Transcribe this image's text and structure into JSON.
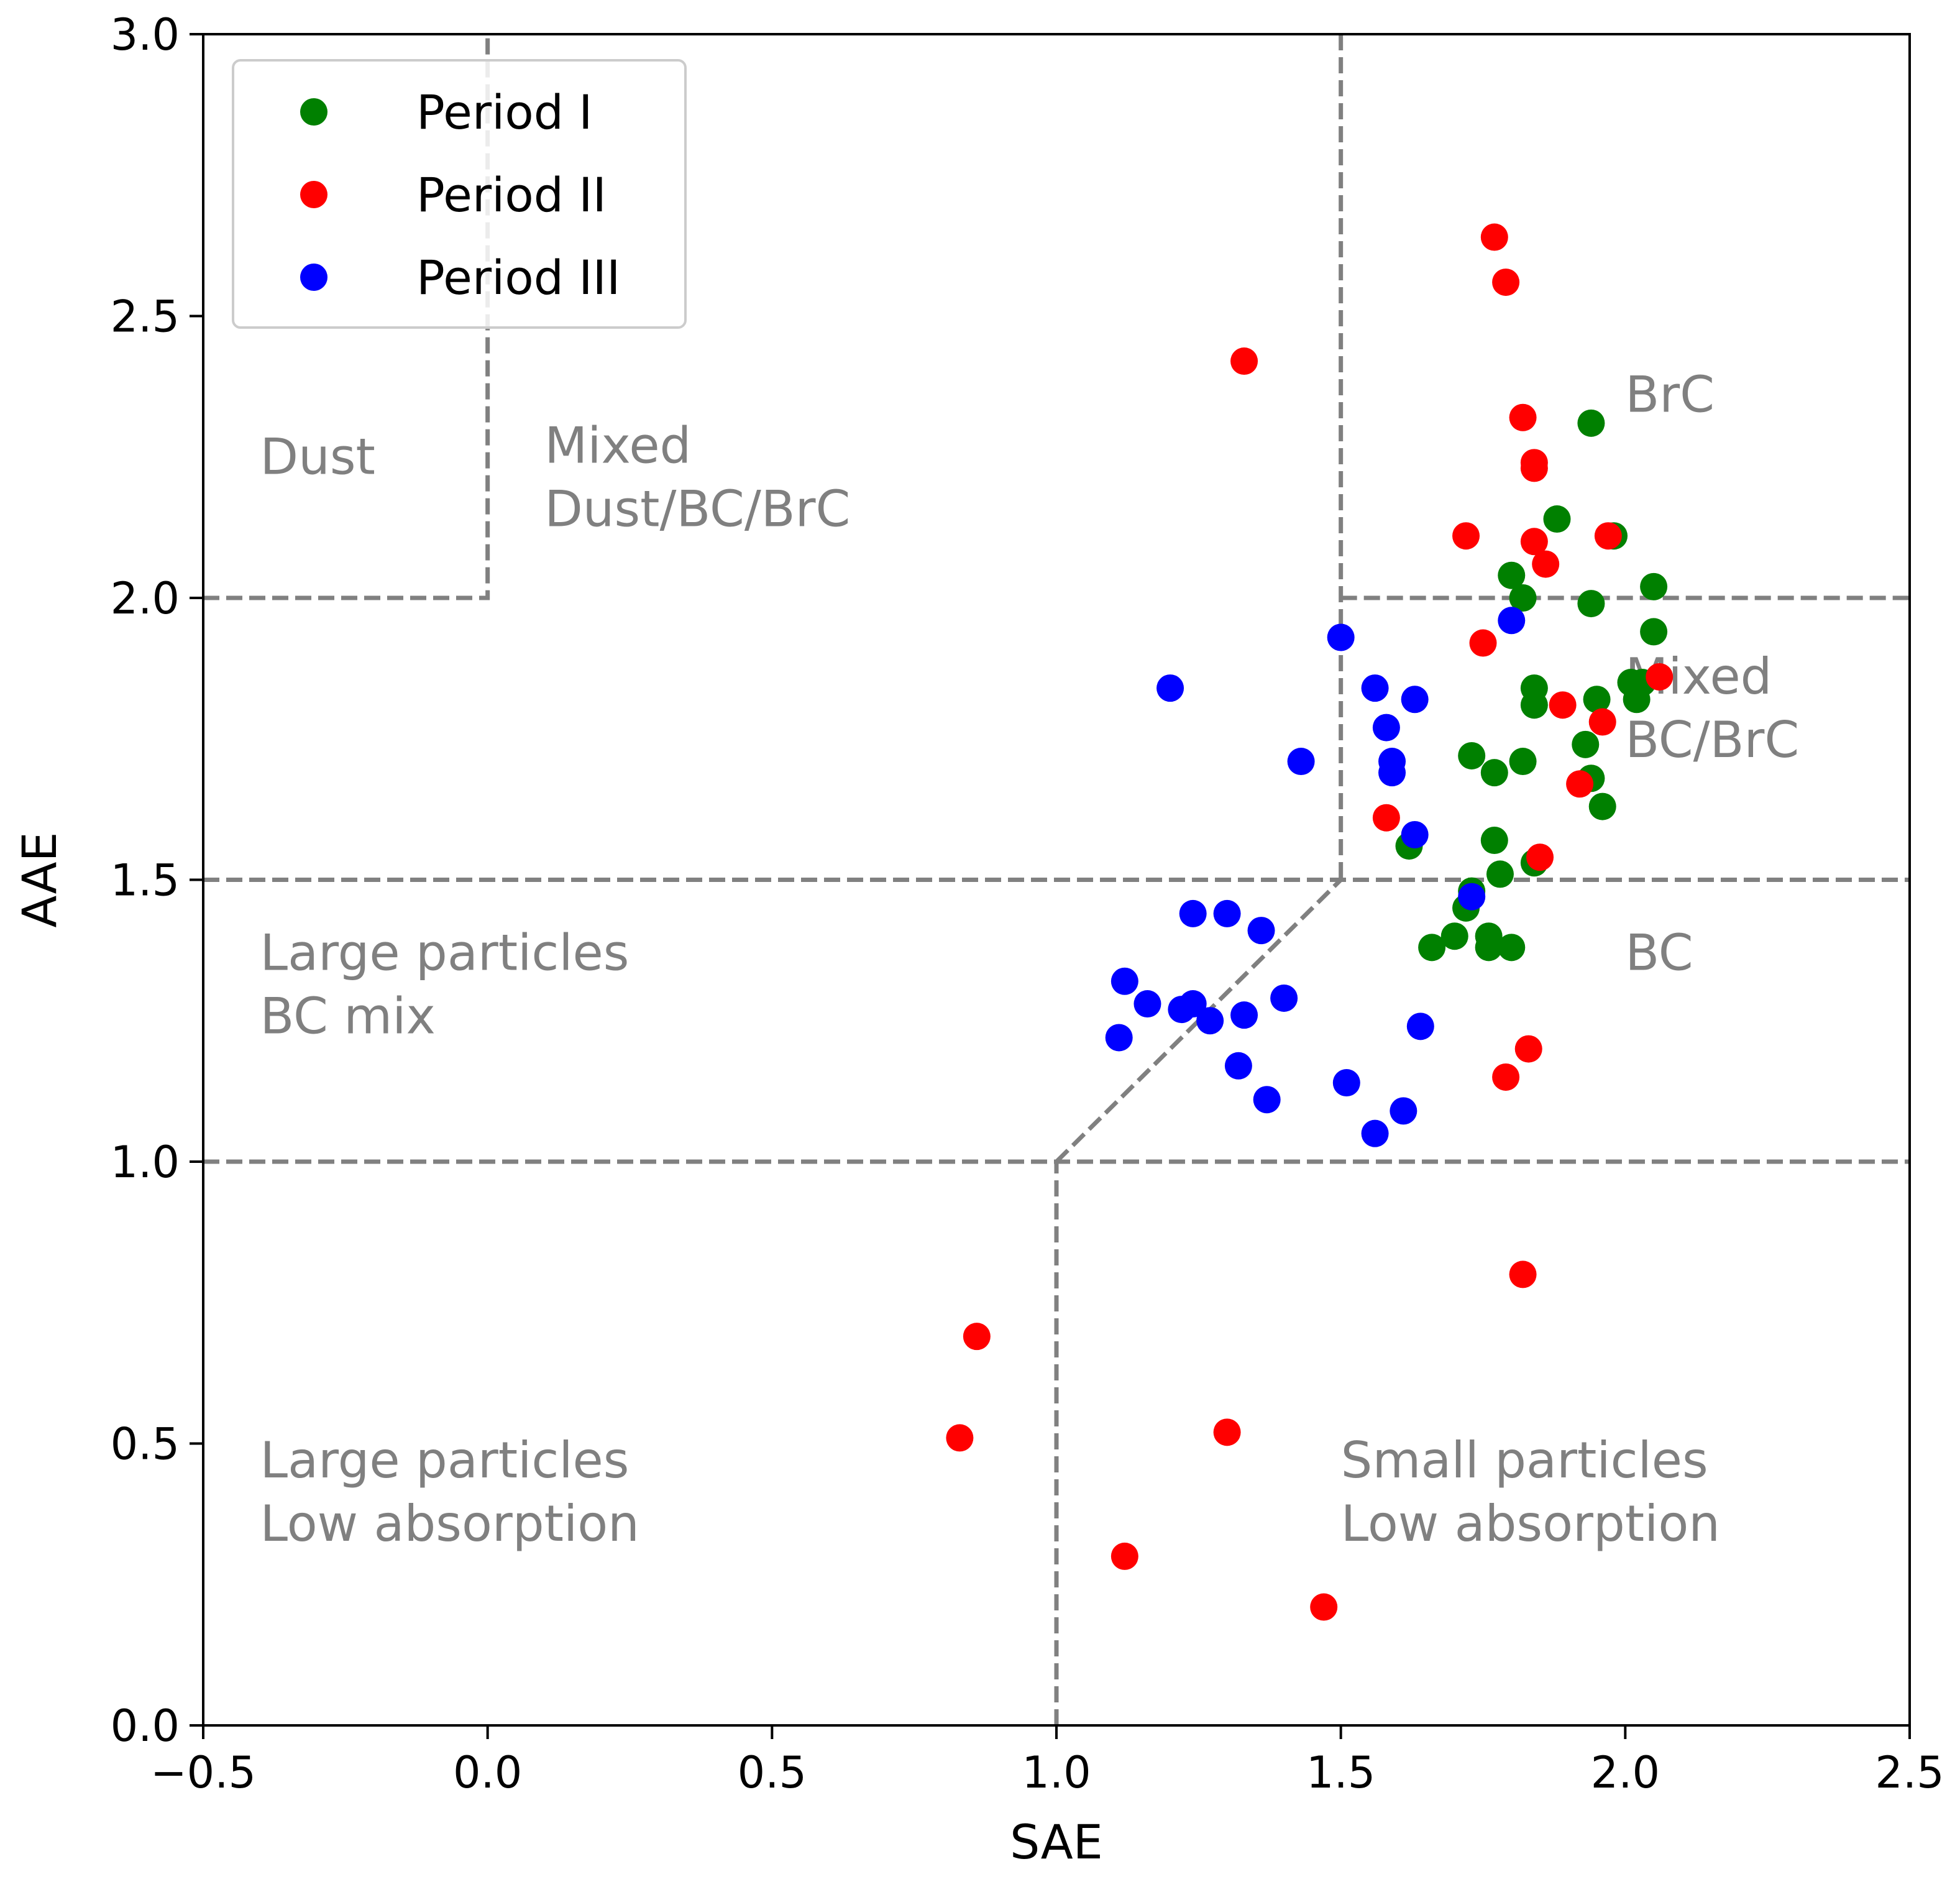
{
  "chart_data": {
    "type": "scatter",
    "xlabel": "SAE",
    "ylabel": "AAE",
    "xlim": [
      -0.5,
      2.5
    ],
    "ylim": [
      0.0,
      3.0
    ],
    "xticks": [
      -0.5,
      0.0,
      0.5,
      1.0,
      1.5,
      2.0,
      2.5
    ],
    "yticks": [
      0.0,
      0.5,
      1.0,
      1.5,
      2.0,
      2.5,
      3.0
    ],
    "xtick_labels": [
      "−0.5",
      "0.0",
      "0.5",
      "1.0",
      "1.5",
      "2.0",
      "2.5"
    ],
    "ytick_labels": [
      "0.0",
      "0.5",
      "1.0",
      "1.5",
      "2.0",
      "2.5",
      "3.0"
    ],
    "grid": false,
    "legend_position": "top-left",
    "series": [
      {
        "name": "Period I",
        "color": "#008000",
        "points": [
          [
            1.94,
            2.31
          ],
          [
            1.88,
            2.14
          ],
          [
            1.98,
            2.11
          ],
          [
            1.8,
            2.04
          ],
          [
            2.05,
            2.02
          ],
          [
            1.82,
            2.0
          ],
          [
            1.94,
            1.99
          ],
          [
            2.05,
            1.94
          ],
          [
            1.84,
            1.84
          ],
          [
            2.01,
            1.85
          ],
          [
            2.03,
            1.85
          ],
          [
            1.84,
            1.81
          ],
          [
            1.95,
            1.82
          ],
          [
            2.02,
            1.82
          ],
          [
            1.93,
            1.74
          ],
          [
            1.73,
            1.72
          ],
          [
            1.82,
            1.71
          ],
          [
            1.77,
            1.69
          ],
          [
            1.94,
            1.68
          ],
          [
            1.96,
            1.63
          ],
          [
            1.62,
            1.56
          ],
          [
            1.77,
            1.57
          ],
          [
            1.78,
            1.51
          ],
          [
            1.84,
            1.53
          ],
          [
            1.73,
            1.48
          ],
          [
            1.72,
            1.45
          ],
          [
            1.76,
            1.4
          ],
          [
            1.7,
            1.4
          ],
          [
            1.66,
            1.38
          ],
          [
            1.76,
            1.38
          ],
          [
            1.8,
            1.38
          ]
        ]
      },
      {
        "name": "Period II",
        "color": "#ff0000",
        "points": [
          [
            1.77,
            2.64
          ],
          [
            1.79,
            2.56
          ],
          [
            1.33,
            2.42
          ],
          [
            1.82,
            2.32
          ],
          [
            1.84,
            2.24
          ],
          [
            1.84,
            2.23
          ],
          [
            1.72,
            2.11
          ],
          [
            1.84,
            2.1
          ],
          [
            1.97,
            2.11
          ],
          [
            1.86,
            2.06
          ],
          [
            1.75,
            1.92
          ],
          [
            2.06,
            1.86
          ],
          [
            1.89,
            1.81
          ],
          [
            1.96,
            1.78
          ],
          [
            1.92,
            1.67
          ],
          [
            1.58,
            1.61
          ],
          [
            1.85,
            1.54
          ],
          [
            1.83,
            1.2
          ],
          [
            1.79,
            1.15
          ],
          [
            1.82,
            0.8
          ],
          [
            0.86,
            0.69
          ],
          [
            0.83,
            0.51
          ],
          [
            1.3,
            0.52
          ],
          [
            1.12,
            0.3
          ],
          [
            1.47,
            0.21
          ]
        ]
      },
      {
        "name": "Period III",
        "color": "#0000ff",
        "points": [
          [
            1.8,
            1.96
          ],
          [
            1.5,
            1.93
          ],
          [
            1.2,
            1.84
          ],
          [
            1.56,
            1.84
          ],
          [
            1.63,
            1.82
          ],
          [
            1.58,
            1.77
          ],
          [
            1.59,
            1.71
          ],
          [
            1.43,
            1.71
          ],
          [
            1.59,
            1.69
          ],
          [
            1.63,
            1.58
          ],
          [
            1.73,
            1.47
          ],
          [
            1.24,
            1.44
          ],
          [
            1.3,
            1.44
          ],
          [
            1.36,
            1.41
          ],
          [
            1.12,
            1.32
          ],
          [
            1.16,
            1.28
          ],
          [
            1.22,
            1.27
          ],
          [
            1.24,
            1.28
          ],
          [
            1.4,
            1.29
          ],
          [
            1.33,
            1.26
          ],
          [
            1.27,
            1.25
          ],
          [
            1.64,
            1.24
          ],
          [
            1.11,
            1.22
          ],
          [
            1.32,
            1.17
          ],
          [
            1.51,
            1.14
          ],
          [
            1.37,
            1.11
          ],
          [
            1.61,
            1.09
          ],
          [
            1.56,
            1.05
          ]
        ]
      }
    ],
    "boundaries": [
      [
        [
          -0.5,
          2.0
        ],
        [
          0.0,
          2.0
        ],
        [
          0.0,
          3.0
        ]
      ],
      [
        [
          1.5,
          3.0
        ],
        [
          1.5,
          1.5
        ]
      ],
      [
        [
          1.5,
          2.0
        ],
        [
          2.5,
          2.0
        ]
      ],
      [
        [
          -0.5,
          1.5
        ],
        [
          2.5,
          1.5
        ]
      ],
      [
        [
          -0.5,
          1.0
        ],
        [
          2.5,
          1.0
        ]
      ],
      [
        [
          1.0,
          1.0
        ],
        [
          1.5,
          1.5
        ]
      ],
      [
        [
          1.0,
          0.0
        ],
        [
          1.0,
          1.0
        ]
      ]
    ],
    "regions": [
      {
        "name": "dust",
        "lines": [
          "Dust"
        ],
        "x": -0.4,
        "y": 2.22
      },
      {
        "name": "mixed-dust-bc-brc",
        "lines": [
          "Mixed",
          "Dust/BC/BrC"
        ],
        "x": 0.1,
        "y": 2.24
      },
      {
        "name": "brc",
        "lines": [
          "BrC"
        ],
        "x": 2.0,
        "y": 2.33
      },
      {
        "name": "mixed-bc-brc",
        "lines": [
          "Mixed",
          "BC/BrC"
        ],
        "x": 2.0,
        "y": 1.83
      },
      {
        "name": "large-particles-bc-mix",
        "lines": [
          "Large particles",
          "BC mix"
        ],
        "x": -0.4,
        "y": 1.34
      },
      {
        "name": "bc",
        "lines": [
          "BC"
        ],
        "x": 2.0,
        "y": 1.34
      },
      {
        "name": "large-particles-low-absorption",
        "lines": [
          "Large particles",
          "Low absorption"
        ],
        "x": -0.4,
        "y": 0.44
      },
      {
        "name": "small-particles-low-absorption",
        "lines": [
          "Small particles",
          "Low absorption"
        ],
        "x": 1.5,
        "y": 0.44
      }
    ]
  }
}
